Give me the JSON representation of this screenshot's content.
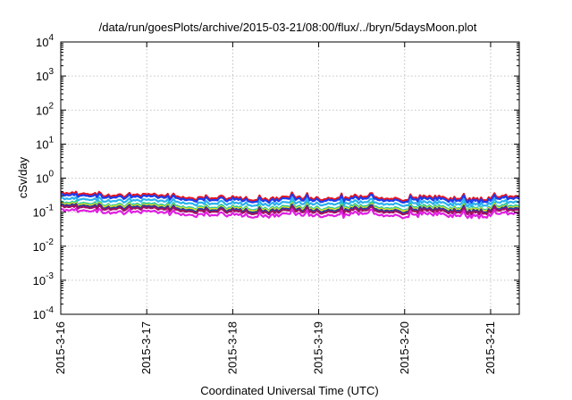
{
  "chart_data": {
    "type": "line",
    "title": "/data/run/goesPlots/archive/2015-03-21/08:00/flux/../bryn/5daysMoon.plot",
    "xlabel": "Coordinated Universal Time (UTC)",
    "ylabel": "cSv/day",
    "yscale": "log",
    "ylim": [
      0.0001,
      10000
    ],
    "y_ticks": [
      {
        "base": "10",
        "exp": "-4",
        "value": 0.0001
      },
      {
        "base": "10",
        "exp": "-3",
        "value": 0.001
      },
      {
        "base": "10",
        "exp": "-2",
        "value": 0.01
      },
      {
        "base": "10",
        "exp": "-1",
        "value": 0.1
      },
      {
        "base": "10",
        "exp": "0",
        "value": 1
      },
      {
        "base": "10",
        "exp": "1",
        "value": 10
      },
      {
        "base": "10",
        "exp": "2",
        "value": 100
      },
      {
        "base": "10",
        "exp": "3",
        "value": 1000
      },
      {
        "base": "10",
        "exp": "4",
        "value": 10000
      }
    ],
    "x_ticks": [
      "2015-3-16",
      "2015-3-17",
      "2015-3-18",
      "2015-3-19",
      "2015-3-20",
      "2015-3-21"
    ],
    "xlim": [
      "2015-03-16T00:00",
      "2015-03-21T08:00"
    ],
    "grid": true,
    "series": [
      {
        "color": "#e8141e",
        "level": 0.36,
        "amp": 0.09
      },
      {
        "color": "#1a3cf0",
        "level": 0.32,
        "amp": 0.08
      },
      {
        "color": "#2ab0f0",
        "level": 0.25,
        "amp": 0.06
      },
      {
        "color": "#20c8a0",
        "level": 0.19,
        "amp": 0.05
      },
      {
        "color": "#e6e020",
        "level": 0.175,
        "amp": 0.04
      },
      {
        "color": "#2040a0",
        "level": 0.16,
        "amp": 0.04
      },
      {
        "color": "#a01060",
        "level": 0.145,
        "amp": 0.035
      },
      {
        "color": "#e020e0",
        "level": 0.115,
        "amp": 0.03
      }
    ]
  }
}
